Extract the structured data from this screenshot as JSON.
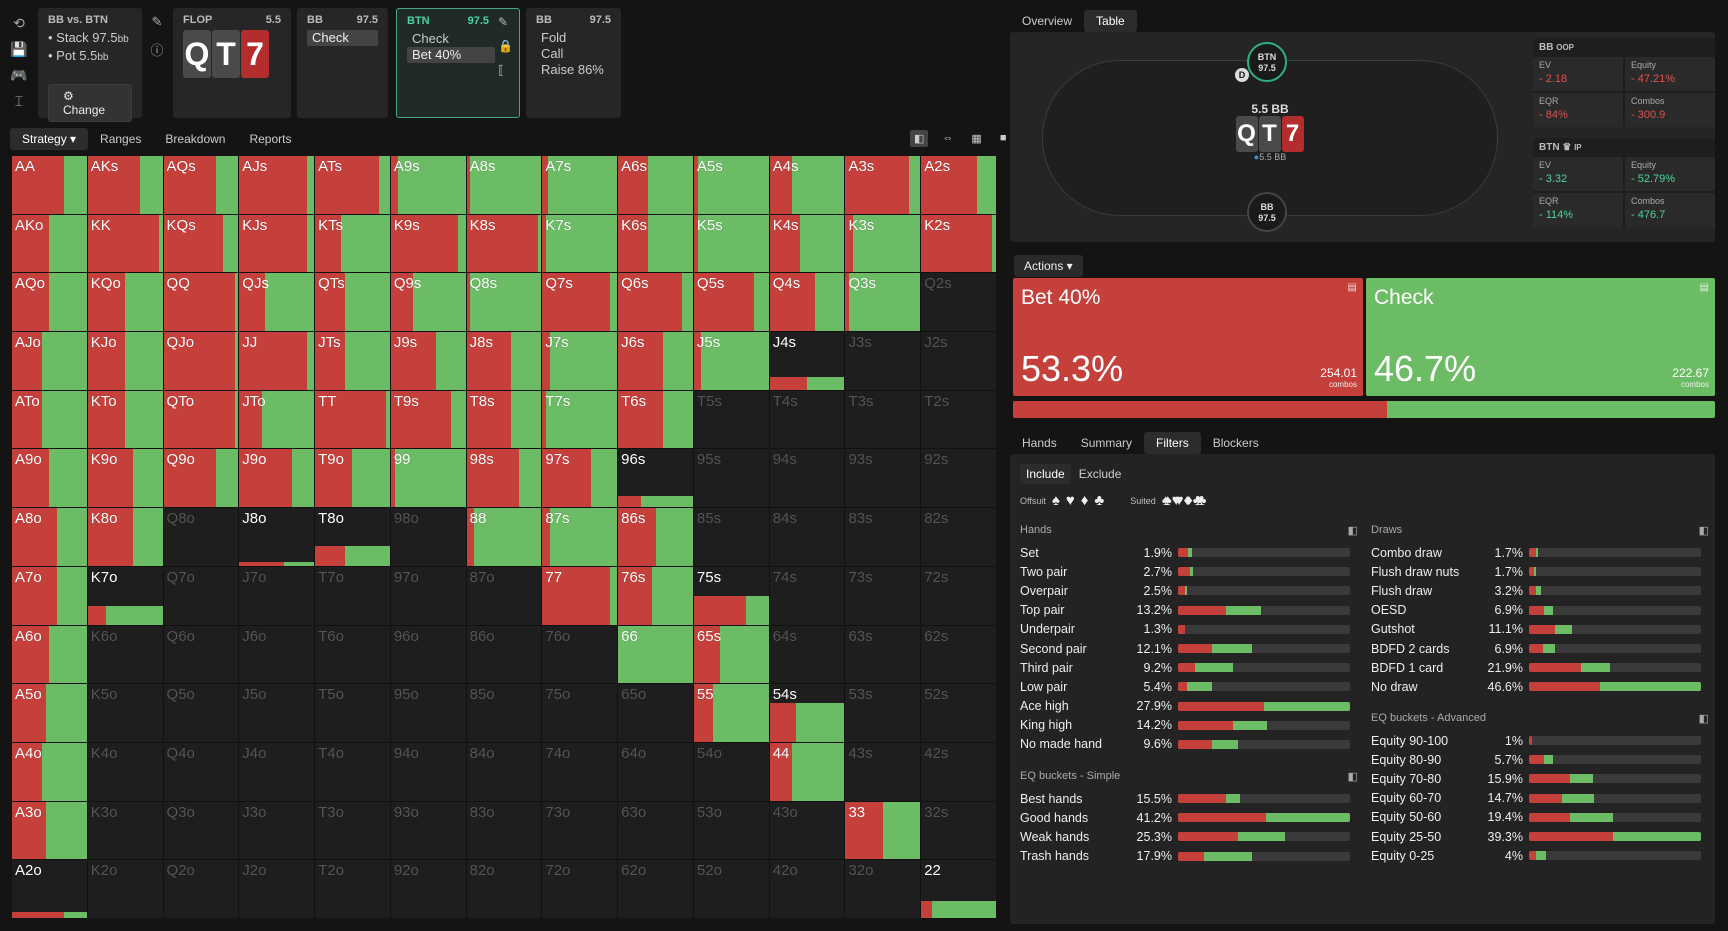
{
  "toolbar": {
    "icons": [
      "refresh-icon",
      "save-icon",
      "gamepad-icon",
      "text-cursor-icon"
    ],
    "glyphs": [
      "⟲",
      "💾",
      "🎮",
      "⌶"
    ]
  },
  "spot_info": {
    "title": "BB vs. BTN",
    "stack": "Stack 97.5",
    "stack_unit": "bb",
    "pot": "Pot 5.5",
    "pot_unit": "bb",
    "change_label": "⚙ Change"
  },
  "flop": {
    "label": "FLOP",
    "value": "5.5",
    "cards": [
      {
        "rank": "Q",
        "color": "black"
      },
      {
        "rank": "T",
        "color": "black"
      },
      {
        "rank": "7",
        "color": "red"
      }
    ]
  },
  "bb1": {
    "label": "BB",
    "value": "97.5",
    "actions": [
      "Check"
    ],
    "selected": 0
  },
  "btn": {
    "label": "BTN",
    "value": "97.5",
    "actions": [
      "Check",
      "Bet 40%"
    ],
    "selected": 1
  },
  "bb2": {
    "label": "BB",
    "value": "97.5",
    "actions": [
      "Fold",
      "Call",
      "Raise 86%"
    ]
  },
  "tabs": [
    "Strategy ▾",
    "Ranges",
    "Breakdown",
    "Reports"
  ],
  "view_icons": [
    "◧",
    "⇔",
    "▦",
    "■"
  ],
  "grid": [
    [
      [
        "AA",
        0.7,
        1
      ],
      [
        "AKs",
        0.7,
        1
      ],
      [
        "AQs",
        0.7,
        1
      ],
      [
        "AJs",
        0.9,
        1
      ],
      [
        "ATs",
        0.85,
        1
      ],
      [
        "A9s",
        0.1,
        1
      ],
      [
        "A8s",
        0.05,
        1
      ],
      [
        "A7s",
        0.08,
        1
      ],
      [
        "A6s",
        0.4,
        1
      ],
      [
        "A5s",
        0.05,
        1
      ],
      [
        "A4s",
        0.3,
        1
      ],
      [
        "A3s",
        0.85,
        1
      ],
      [
        "A2s",
        0.75,
        1
      ]
    ],
    [
      [
        "AKo",
        0.5,
        1
      ],
      [
        "KK",
        0.95,
        1
      ],
      [
        "KQs",
        0.8,
        1
      ],
      [
        "KJs",
        0.9,
        1
      ],
      [
        "KTs",
        0.35,
        1
      ],
      [
        "K9s",
        0.9,
        1
      ],
      [
        "K8s",
        0.95,
        1
      ],
      [
        "K7s",
        0.05,
        1
      ],
      [
        "K6s",
        0.4,
        1
      ],
      [
        "K5s",
        0.05,
        1
      ],
      [
        "K4s",
        0.4,
        1
      ],
      [
        "K3s",
        0.1,
        1
      ],
      [
        "K2s",
        0.95,
        1
      ]
    ],
    [
      [
        "AQo",
        0.5,
        1
      ],
      [
        "KQo",
        0.5,
        1
      ],
      [
        "QQ",
        0.95,
        1
      ],
      [
        "QJs",
        0.35,
        1
      ],
      [
        "QTs",
        0.4,
        1
      ],
      [
        "Q9s",
        0.3,
        1
      ],
      [
        "Q8s",
        0.05,
        1
      ],
      [
        "Q7s",
        0.9,
        1
      ],
      [
        "Q6s",
        0.85,
        1
      ],
      [
        "Q5s",
        0.8,
        1
      ],
      [
        "Q4s",
        0.6,
        1
      ],
      [
        "Q3s",
        0.05,
        1
      ],
      [
        "Q2s",
        0,
        0
      ]
    ],
    [
      [
        "AJo",
        0.4,
        1
      ],
      [
        "KJo",
        0.5,
        1
      ],
      [
        "QJo",
        0.95,
        1
      ],
      [
        "JJ",
        0.9,
        1
      ],
      [
        "JTs",
        0.4,
        1
      ],
      [
        "J9s",
        0.6,
        1
      ],
      [
        "J8s",
        0.6,
        1
      ],
      [
        "J7s",
        0.1,
        1
      ],
      [
        "J6s",
        0.6,
        1
      ],
      [
        "J5s",
        0.1,
        1
      ],
      [
        "J4s",
        0.5,
        0.22
      ],
      [
        "J3s",
        0,
        0
      ],
      [
        "J2s",
        0,
        0
      ]
    ],
    [
      [
        "ATo",
        0.4,
        1
      ],
      [
        "KTo",
        0.5,
        1
      ],
      [
        "QTo",
        0.95,
        1
      ],
      [
        "JTo",
        0.3,
        1
      ],
      [
        "TT",
        0.95,
        1
      ],
      [
        "T9s",
        0.8,
        1
      ],
      [
        "T8s",
        0.6,
        1
      ],
      [
        "T7s",
        0.05,
        1
      ],
      [
        "T6s",
        0.6,
        1
      ],
      [
        "T5s",
        0,
        0
      ],
      [
        "T4s",
        0,
        0
      ],
      [
        "T3s",
        0,
        0
      ],
      [
        "T2s",
        0,
        0
      ]
    ],
    [
      [
        "A9o",
        0.5,
        1
      ],
      [
        "K9o",
        0.6,
        1
      ],
      [
        "Q9o",
        0.7,
        1
      ],
      [
        "J9o",
        0.7,
        1
      ],
      [
        "T9o",
        0.5,
        1
      ],
      [
        "99",
        0.05,
        1
      ],
      [
        "98s",
        0.7,
        1
      ],
      [
        "97s",
        0.65,
        1
      ],
      [
        "96s",
        0.3,
        0.2
      ],
      [
        "95s",
        0,
        0
      ],
      [
        "94s",
        0,
        0
      ],
      [
        "93s",
        0,
        0
      ],
      [
        "92s",
        0,
        0
      ]
    ],
    [
      [
        "A8o",
        0.6,
        1
      ],
      [
        "K8o",
        0.6,
        1
      ],
      [
        "Q8o",
        0,
        0
      ],
      [
        "J8o",
        0.6,
        0.07
      ],
      [
        "T8o",
        0.4,
        0.35
      ],
      [
        "98o",
        0,
        0
      ],
      [
        "88",
        0.1,
        1
      ],
      [
        "87s",
        0.1,
        1
      ],
      [
        "86s",
        0.5,
        1
      ],
      [
        "85s",
        0,
        0
      ],
      [
        "84s",
        0,
        0
      ],
      [
        "83s",
        0,
        0
      ],
      [
        "82s",
        0,
        0
      ]
    ],
    [
      [
        "A7o",
        0.6,
        1
      ],
      [
        "K7o",
        0.25,
        0.32
      ],
      [
        "Q7o",
        0,
        0
      ],
      [
        "J7o",
        0,
        0
      ],
      [
        "T7o",
        0,
        0
      ],
      [
        "97o",
        0,
        0
      ],
      [
        "87o",
        0,
        0
      ],
      [
        "77",
        0.9,
        1
      ],
      [
        "76s",
        0.45,
        1
      ],
      [
        "75s",
        0.7,
        0.5
      ],
      [
        "74s",
        0,
        0
      ],
      [
        "73s",
        0,
        0
      ],
      [
        "72s",
        0,
        0
      ]
    ],
    [
      [
        "A6o",
        0.5,
        1
      ],
      [
        "K6o",
        0,
        0
      ],
      [
        "Q6o",
        0,
        0
      ],
      [
        "J6o",
        0,
        0
      ],
      [
        "T6o",
        0,
        0
      ],
      [
        "96o",
        0,
        0
      ],
      [
        "86o",
        0,
        0
      ],
      [
        "76o",
        0,
        0
      ],
      [
        "66",
        0,
        1
      ],
      [
        "65s",
        0.35,
        1
      ],
      [
        "64s",
        0,
        0
      ],
      [
        "63s",
        0,
        0
      ],
      [
        "62s",
        0,
        0
      ]
    ],
    [
      [
        "A5o",
        0.45,
        1
      ],
      [
        "K5o",
        0,
        0
      ],
      [
        "Q5o",
        0,
        0
      ],
      [
        "J5o",
        0,
        0
      ],
      [
        "T5o",
        0,
        0
      ],
      [
        "95o",
        0,
        0
      ],
      [
        "85o",
        0,
        0
      ],
      [
        "75o",
        0,
        0
      ],
      [
        "65o",
        0,
        0
      ],
      [
        "55",
        0.25,
        1
      ],
      [
        "54s",
        0.35,
        0.68
      ],
      [
        "53s",
        0,
        0
      ],
      [
        "52s",
        0,
        0
      ]
    ],
    [
      [
        "A4o",
        0.4,
        1
      ],
      [
        "K4o",
        0,
        0
      ],
      [
        "Q4o",
        0,
        0
      ],
      [
        "J4o",
        0,
        0
      ],
      [
        "T4o",
        0,
        0
      ],
      [
        "94o",
        0,
        0
      ],
      [
        "84o",
        0,
        0
      ],
      [
        "74o",
        0,
        0
      ],
      [
        "64o",
        0,
        0
      ],
      [
        "54o",
        0,
        0
      ],
      [
        "44",
        0.3,
        1
      ],
      [
        "43s",
        0,
        0
      ],
      [
        "42s",
        0,
        0
      ]
    ],
    [
      [
        "A3o",
        0.45,
        1
      ],
      [
        "K3o",
        0,
        0
      ],
      [
        "Q3o",
        0,
        0
      ],
      [
        "J3o",
        0,
        0
      ],
      [
        "T3o",
        0,
        0
      ],
      [
        "93o",
        0,
        0
      ],
      [
        "83o",
        0,
        0
      ],
      [
        "73o",
        0,
        0
      ],
      [
        "63o",
        0,
        0
      ],
      [
        "53o",
        0,
        0
      ],
      [
        "43o",
        0,
        0
      ],
      [
        "33",
        0.5,
        1
      ],
      [
        "32s",
        0,
        0
      ]
    ],
    [
      [
        "A2o",
        0.7,
        0.1
      ],
      [
        "K2o",
        0,
        0
      ],
      [
        "Q2o",
        0,
        0
      ],
      [
        "J2o",
        0,
        0
      ],
      [
        "T2o",
        0,
        0
      ],
      [
        "92o",
        0,
        0
      ],
      [
        "82o",
        0,
        0
      ],
      [
        "72o",
        0,
        0
      ],
      [
        "62o",
        0,
        0
      ],
      [
        "52o",
        0,
        0
      ],
      [
        "42o",
        0,
        0
      ],
      [
        "32o",
        0,
        0
      ],
      [
        "22",
        0.15,
        0.3
      ]
    ]
  ],
  "right_tabs": [
    "Overview",
    "Table"
  ],
  "table": {
    "btn_seat": {
      "name": "BTN",
      "stack": "97.5"
    },
    "bb_seat": {
      "name": "BB",
      "stack": "97.5"
    },
    "dealer": "D",
    "pot_label": "5.5 BB",
    "board": [
      {
        "rank": "Q",
        "color": "black"
      },
      {
        "rank": "T",
        "color": "black"
      },
      {
        "rank": "7",
        "color": "red"
      }
    ],
    "chip_label": "5.5 BB"
  },
  "bb_stats": {
    "title": "BB",
    "tag": "OOP",
    "ev": "- 2.18",
    "equity": "- 47.21%",
    "eqr": "- 84%",
    "combos": "- 300.9"
  },
  "btn_stats": {
    "title": "BTN ♛",
    "tag": "IP",
    "ev": "- 3.32",
    "equity": "- 52.79%",
    "eqr": "- 114%",
    "combos": "- 476.7"
  },
  "stat_labels": {
    "ev": "EV",
    "equity": "Equity",
    "eqr": "EQR",
    "combos": "Combos"
  },
  "actions_label": "Actions ▾",
  "bet": {
    "name": "Bet 40%",
    "pct": "53.3%",
    "combos": "254.01",
    "combos_label": "combos",
    "fraction": 0.533
  },
  "check": {
    "name": "Check",
    "pct": "46.7%",
    "combos": "222.67",
    "combos_label": "combos",
    "fraction": 0.467
  },
  "bottom_tabs": [
    "Hands",
    "Summary",
    "Filters",
    "Blockers"
  ],
  "include_label": "Include",
  "exclude_label": "Exclude",
  "offsuit_label": "Offsuit",
  "suited_label": "Suited",
  "suit_glyphs": [
    "♠",
    "♥",
    "♦",
    "♣"
  ],
  "suited_glyphs": [
    "♠♠",
    "♥♥",
    "♦♦",
    "♣♣"
  ],
  "hands_title": "Hands",
  "hands": [
    [
      "Set",
      "1.9%",
      0.06,
      0.02
    ],
    [
      "Two pair",
      "2.7%",
      0.07,
      0.02
    ],
    [
      "Overpair",
      "2.5%",
      0.04,
      0.01
    ],
    [
      "Top pair",
      "13.2%",
      0.28,
      0.2
    ],
    [
      "Underpair",
      "1.3%",
      0.04,
      0.0
    ],
    [
      "Second pair",
      "12.1%",
      0.2,
      0.23
    ],
    [
      "Third pair",
      "9.2%",
      0.1,
      0.22
    ],
    [
      "Low pair",
      "5.4%",
      0.05,
      0.15
    ],
    [
      "Ace high",
      "27.9%",
      0.5,
      0.5
    ],
    [
      "King high",
      "14.2%",
      0.32,
      0.2
    ],
    [
      "No made hand",
      "9.6%",
      0.2,
      0.15
    ]
  ],
  "draws_title": "Draws",
  "draws": [
    [
      "Combo draw",
      "1.7%",
      0.04,
      0.01
    ],
    [
      "Flush draw nuts",
      "1.7%",
      0.03,
      0.01
    ],
    [
      "Flush draw",
      "3.2%",
      0.04,
      0.03
    ],
    [
      "OESD",
      "6.9%",
      0.09,
      0.05
    ],
    [
      "Gutshot",
      "11.1%",
      0.15,
      0.1
    ],
    [
      "BDFD 2 cards",
      "6.9%",
      0.08,
      0.07
    ],
    [
      "BDFD 1 card",
      "21.9%",
      0.3,
      0.17
    ],
    [
      "No draw",
      "46.6%",
      0.41,
      0.59
    ]
  ],
  "eqs_title": "EQ buckets - Simple",
  "eq_simple": [
    [
      "Best hands",
      "15.5%",
      0.28,
      0.08
    ],
    [
      "Good hands",
      "41.2%",
      0.51,
      0.49
    ],
    [
      "Weak hands",
      "25.3%",
      0.35,
      0.27
    ],
    [
      "Trash hands",
      "17.9%",
      0.15,
      0.28
    ]
  ],
  "eqa_title": "EQ buckets - Advanced",
  "eq_advanced": [
    [
      "Equity 90-100",
      "1%",
      0.02,
      0.0
    ],
    [
      "Equity 80-90",
      "5.7%",
      0.09,
      0.05
    ],
    [
      "Equity 70-80",
      "15.9%",
      0.24,
      0.13
    ],
    [
      "Equity 60-70",
      "14.7%",
      0.19,
      0.19
    ],
    [
      "Equity 50-60",
      "19.4%",
      0.24,
      0.25
    ],
    [
      "Equity 25-50",
      "39.3%",
      0.49,
      0.51
    ],
    [
      "Equity 0-25",
      "4%",
      0.04,
      0.06
    ]
  ]
}
